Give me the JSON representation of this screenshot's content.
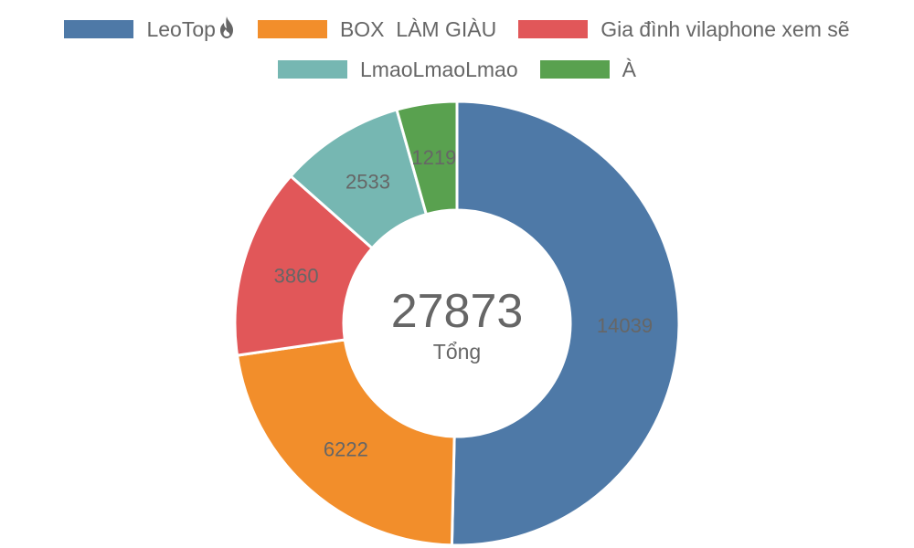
{
  "chart_data": {
    "type": "pie",
    "categories": [
      "LeoTop",
      "BOX  LÀM GIÀU",
      "Gia đình vilaphone xem sẽ",
      "LmaoLmaoLmao",
      "À"
    ],
    "values": [
      14039,
      6222,
      3860,
      2533,
      1219
    ],
    "colors": [
      "#4e79a7",
      "#f28e2b",
      "#e15759",
      "#76b7b2",
      "#59a14f"
    ],
    "legend_position": "top",
    "center_total": "27873",
    "center_caption": "Tổng",
    "legend_icons": [
      "flame-icon",
      "",
      "",
      "",
      ""
    ]
  }
}
